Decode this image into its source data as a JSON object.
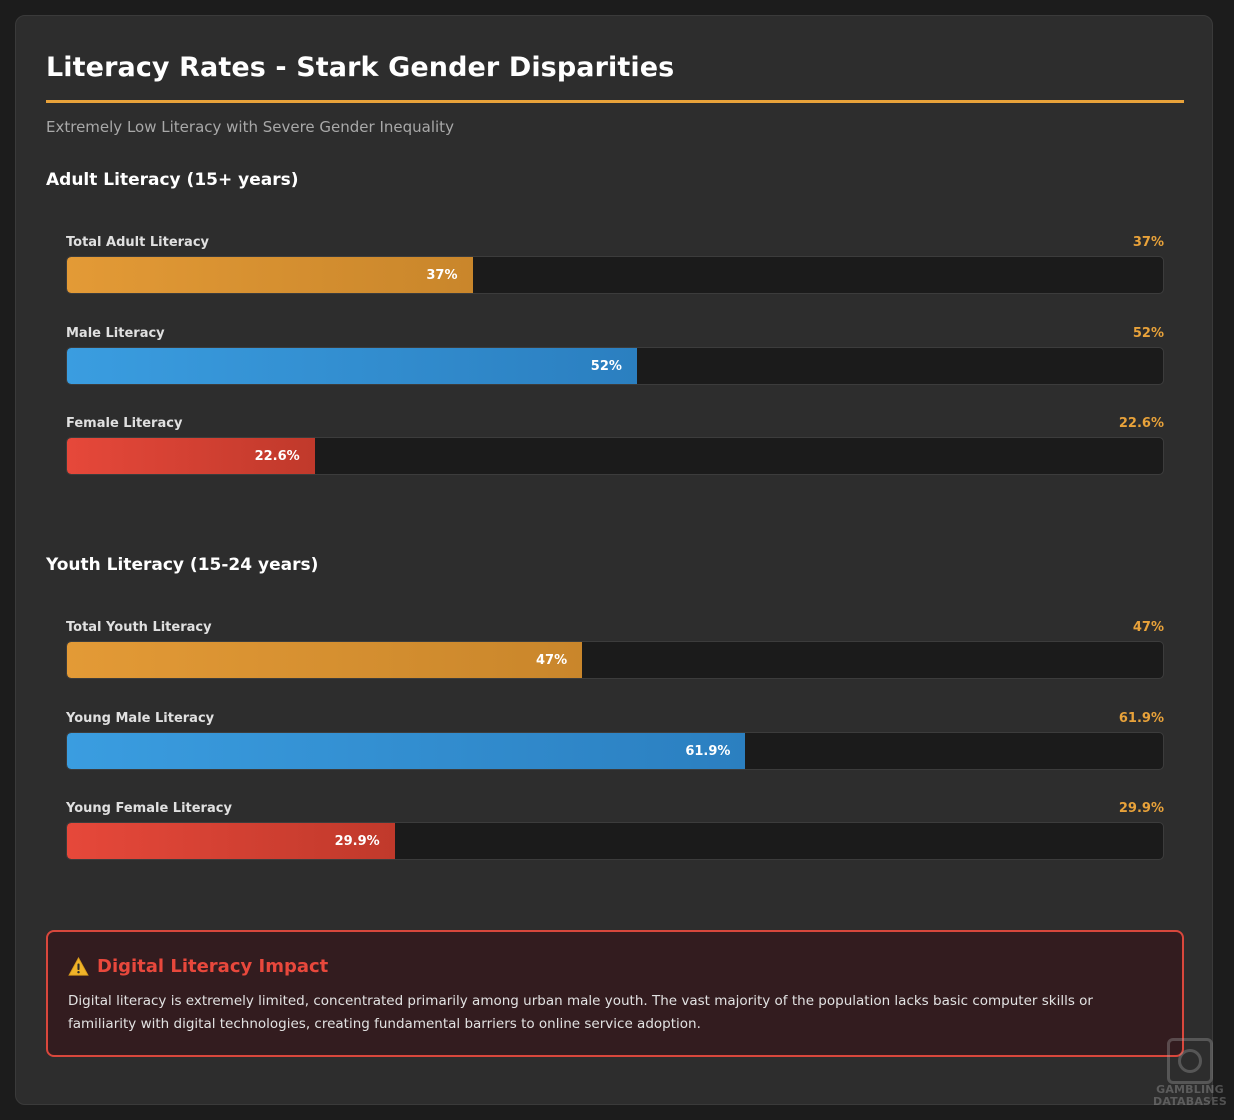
{
  "header": {
    "title": "Literacy Rates - Stark Gender Disparities",
    "subtitle": "Extremely Low Literacy with Severe Gender Inequality"
  },
  "colors": {
    "accent": "#e8a23a",
    "total": "#e39a36",
    "male": "#3a9de0",
    "female": "#e6483a",
    "alert": "#e8483c"
  },
  "chart_data": [
    {
      "type": "bar",
      "orientation": "horizontal",
      "title": "Adult Literacy (15+ years)",
      "categories": [
        "Total Adult Literacy",
        "Male Literacy",
        "Female Literacy"
      ],
      "values": [
        37,
        52,
        22.6
      ],
      "value_labels": [
        "37%",
        "52%",
        "22.6%"
      ],
      "xlim": [
        0,
        100
      ]
    },
    {
      "type": "bar",
      "orientation": "horizontal",
      "title": "Youth Literacy (15-24 years)",
      "categories": [
        "Total Youth Literacy",
        "Young Male Literacy",
        "Young Female Literacy"
      ],
      "values": [
        47,
        61.9,
        29.9
      ],
      "value_labels": [
        "47%",
        "61.9%",
        "29.9%"
      ],
      "xlim": [
        0,
        100
      ]
    }
  ],
  "alert": {
    "icon": "warning-icon",
    "title": "Digital Literacy Impact",
    "text": "Digital literacy is extremely limited, concentrated primarily among urban male youth. The vast majority of the population lacks basic computer skills or familiarity with digital technologies, creating fundamental barriers to online service adoption."
  },
  "watermark": {
    "line1": "GAMBLING",
    "line2": "DATABASES"
  }
}
